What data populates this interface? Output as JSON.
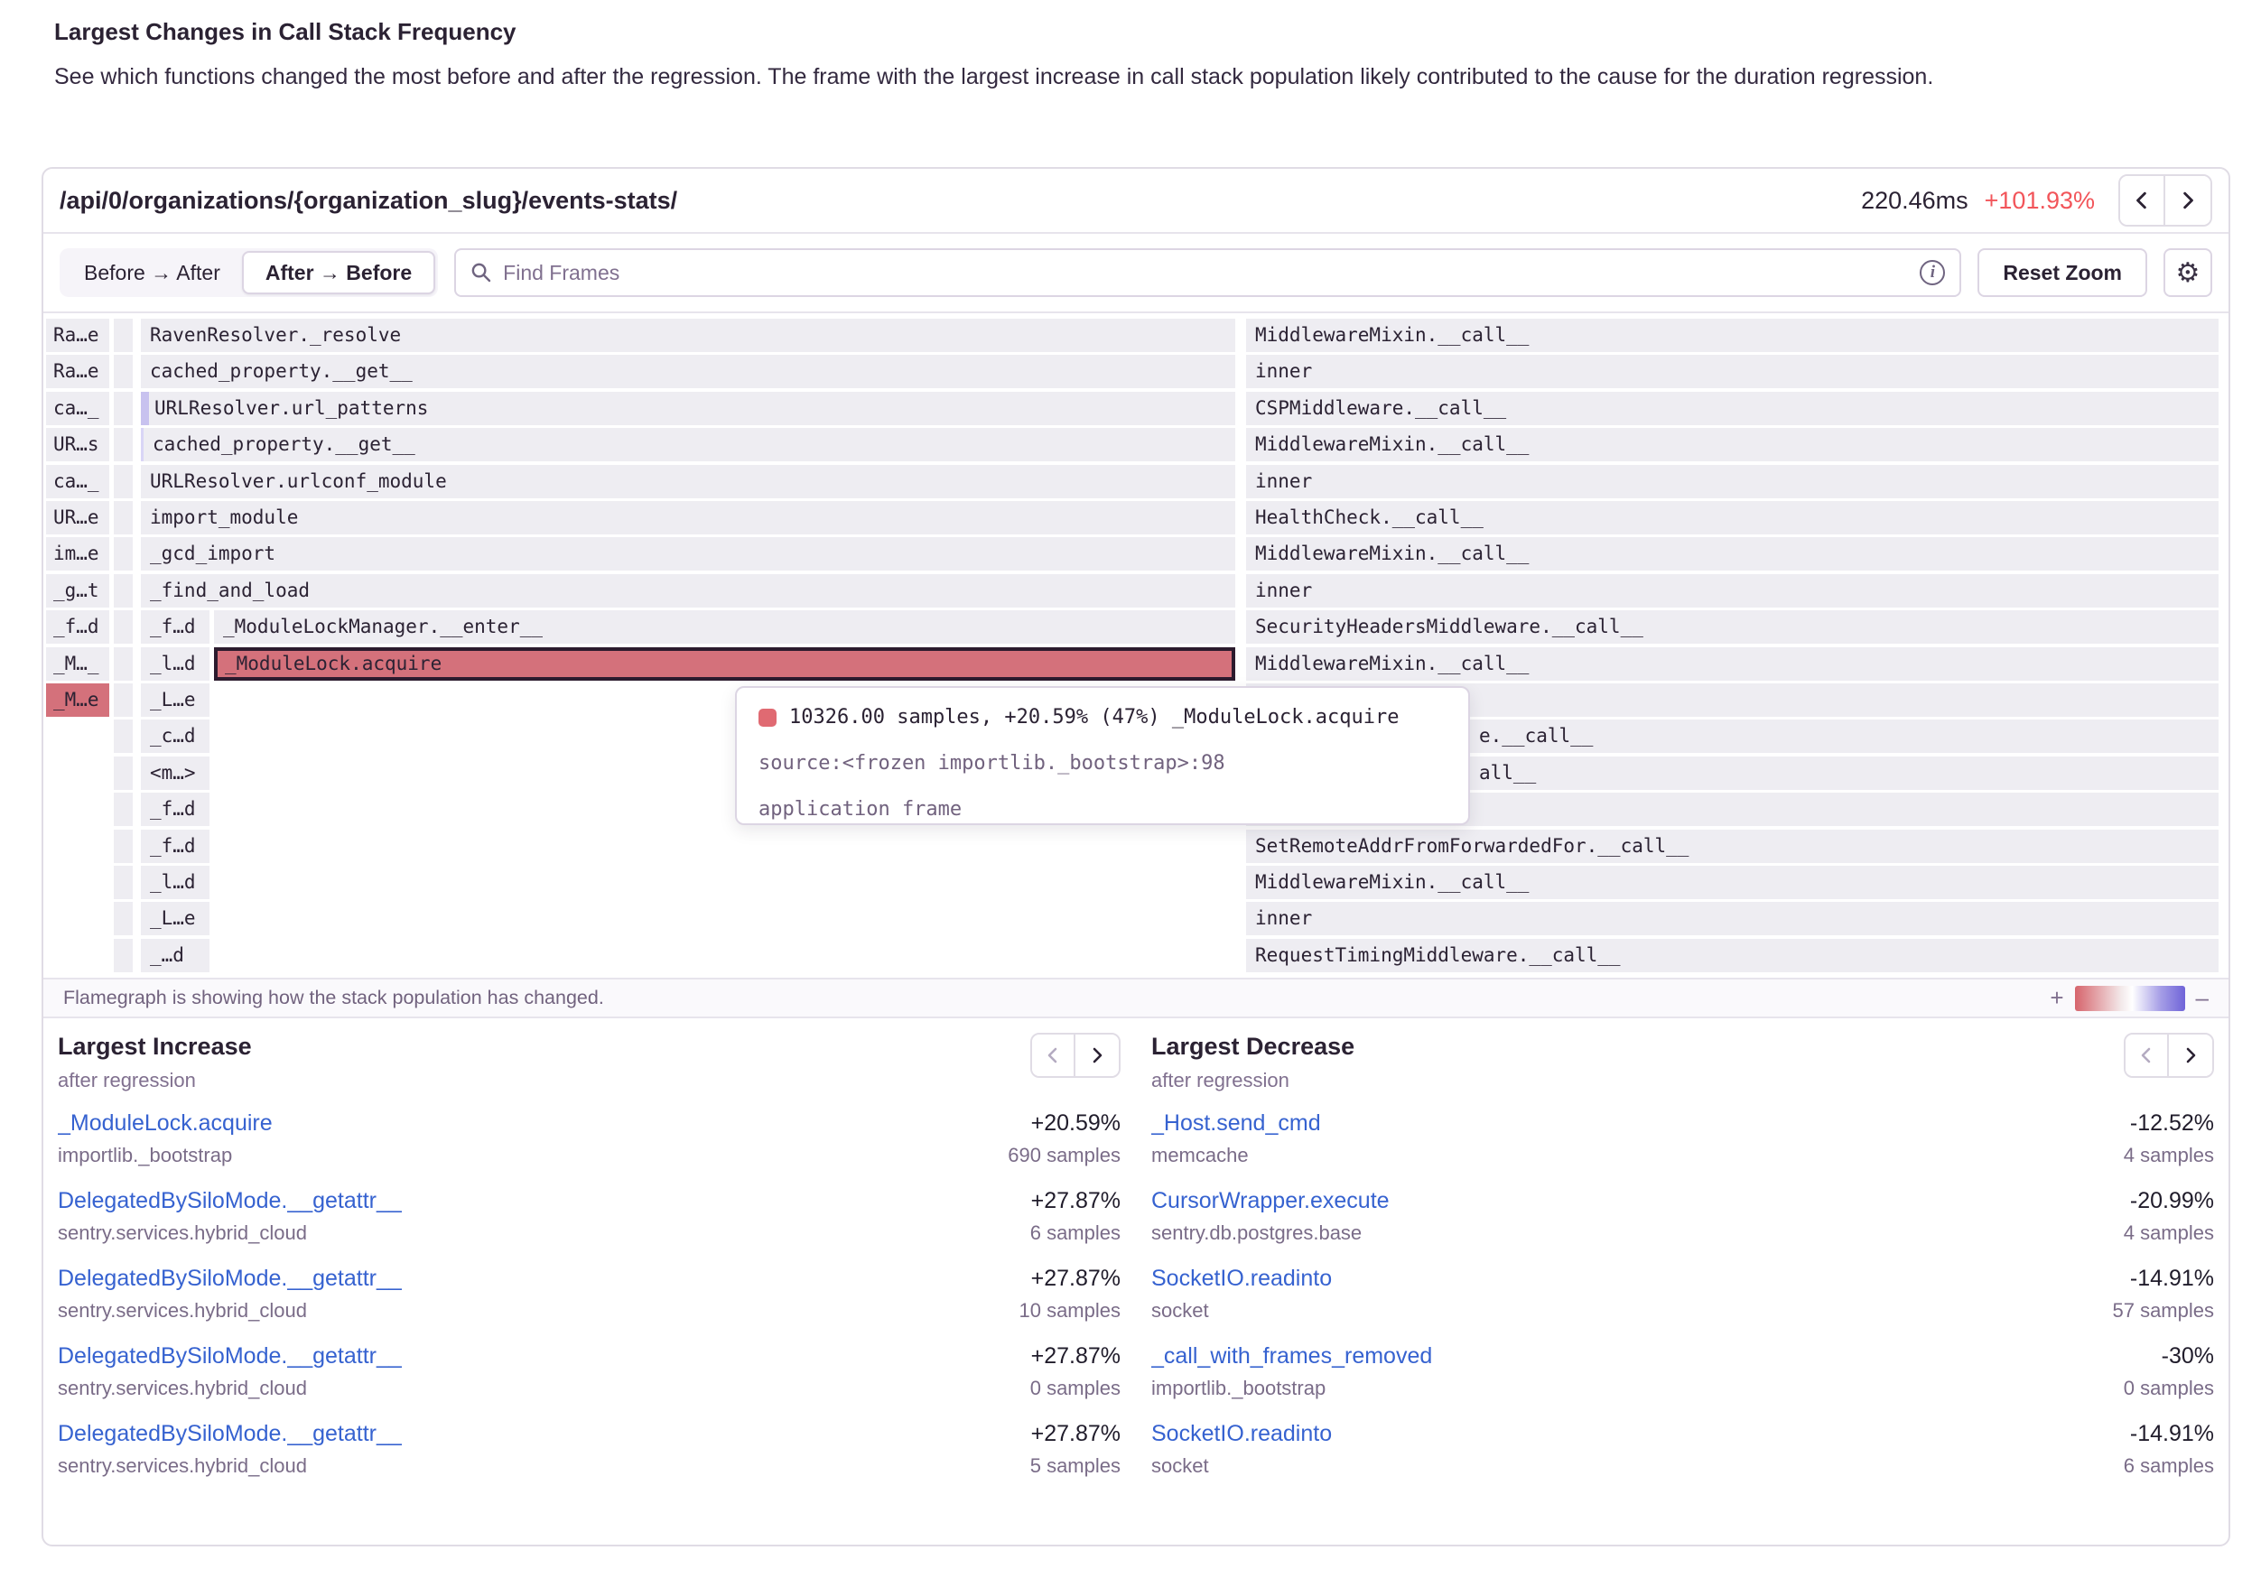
{
  "page": {
    "title": "Largest Changes in Call Stack Frequency",
    "description": "See which functions changed the most before and after the regression. The frame with the largest increase in call stack population likely contributed to the cause for the duration regression."
  },
  "panel": {
    "endpoint": "/api/0/organizations/{organization_slug}/events-stats/",
    "duration": "220.46ms",
    "change": "+101.93%",
    "toggle": {
      "left": "Before → After",
      "right": "After → Before"
    },
    "search_placeholder": "Find Frames",
    "reset_zoom": "Reset Zoom",
    "gear_icon": "⚙"
  },
  "colors": {
    "accent_red": "#d4717b",
    "change_red": "#f2555a",
    "link_blue": "#3662d0",
    "frame_gray": "#eeedf2",
    "gradient_negative": "#6f63d8",
    "gradient_positive": "#d6646c"
  },
  "flamegraph": {
    "rows": [
      {
        "a": "Ra…e",
        "b": true,
        "main": "RavenResolver._resolve",
        "right": "MiddlewareMixin.__call__"
      },
      {
        "a": "Ra…e",
        "b": true,
        "main": "cached_property.__get__",
        "right": "inner"
      },
      {
        "a": "ca…_",
        "b": true,
        "main": "URLResolver.url_patterns",
        "accent": true,
        "right": "CSPMiddleware.__call__"
      },
      {
        "a": "UR…s",
        "b": true,
        "main": "cached_property.__get__",
        "accent2": true,
        "right": "MiddlewareMixin.__call__"
      },
      {
        "a": "ca…_",
        "b": true,
        "main": "URLResolver.urlconf_module",
        "right": "inner"
      },
      {
        "a": "UR…e",
        "b": true,
        "main": "import_module",
        "right": "HealthCheck.__call__"
      },
      {
        "a": "im…e",
        "b": true,
        "main": "_gcd_import",
        "right": "MiddlewareMixin.__call__"
      },
      {
        "a": "_g…t",
        "b": true,
        "main": "_find_and_load",
        "right": "inner"
      },
      {
        "a": "_f…d",
        "b": true,
        "c": "_f…d",
        "main": "_ModuleLockManager.__enter__",
        "right": "SecurityHeadersMiddleware.__call__"
      },
      {
        "a": "_M…_",
        "b": true,
        "c": "_l…d",
        "main": "_ModuleLock.acquire",
        "selected": true,
        "right": "MiddlewareMixin.__call__"
      },
      {
        "a": "_M…e",
        "a_red": true,
        "b": true,
        "c": "_L…e",
        "right": ""
      },
      {
        "b": true,
        "c": "_c…d",
        "right_frag": "e.__call__"
      },
      {
        "b": true,
        "c": "<m…>",
        "right_frag": "all__"
      },
      {
        "b": true,
        "c": "_f…d",
        "right": ""
      },
      {
        "b": true,
        "c": "_f…d",
        "right": "SetRemoteAddrFromForwardedFor.__call__"
      },
      {
        "b": true,
        "c": "_l…d",
        "right": "MiddlewareMixin.__call__"
      },
      {
        "b": true,
        "c": "_L…e",
        "right": "inner"
      },
      {
        "b": true,
        "c": "_…d",
        "right": "RequestTimingMiddleware.__call__"
      }
    ]
  },
  "tooltip": {
    "line1": "10326.00 samples, +20.59% (47%) _ModuleLock.acquire",
    "line2": "source:<frozen importlib._bootstrap>:98",
    "line3": "application frame"
  },
  "footer": {
    "text": "Flamegraph is showing how the stack population has changed.",
    "plus": "+",
    "minus": "–"
  },
  "increase": {
    "title": "Largest Increase",
    "subtitle": "after regression",
    "items": [
      {
        "name": "_ModuleLock.acquire",
        "module": "importlib._bootstrap",
        "pct": "+20.59%",
        "samples": "690 samples"
      },
      {
        "name": "DelegatedBySiloMode.__getattr__",
        "module": "sentry.services.hybrid_cloud",
        "pct": "+27.87%",
        "samples": "6 samples"
      },
      {
        "name": "DelegatedBySiloMode.__getattr__",
        "module": "sentry.services.hybrid_cloud",
        "pct": "+27.87%",
        "samples": "10 samples"
      },
      {
        "name": "DelegatedBySiloMode.__getattr__",
        "module": "sentry.services.hybrid_cloud",
        "pct": "+27.87%",
        "samples": "0 samples"
      },
      {
        "name": "DelegatedBySiloMode.__getattr__",
        "module": "sentry.services.hybrid_cloud",
        "pct": "+27.87%",
        "samples": "5 samples"
      }
    ]
  },
  "decrease": {
    "title": "Largest Decrease",
    "subtitle": "after regression",
    "items": [
      {
        "name": "_Host.send_cmd",
        "module": "memcache",
        "pct": "-12.52%",
        "samples": "4 samples"
      },
      {
        "name": "CursorWrapper.execute",
        "module": "sentry.db.postgres.base",
        "pct": "-20.99%",
        "samples": "4 samples"
      },
      {
        "name": "SocketIO.readinto",
        "module": "socket",
        "pct": "-14.91%",
        "samples": "57 samples"
      },
      {
        "name": "_call_with_frames_removed",
        "module": "importlib._bootstrap",
        "pct": "-30%",
        "samples": "0 samples"
      },
      {
        "name": "SocketIO.readinto",
        "module": "socket",
        "pct": "-14.91%",
        "samples": "6 samples"
      }
    ]
  }
}
